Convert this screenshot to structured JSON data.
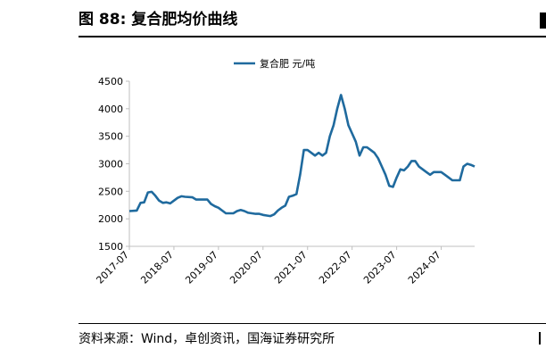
{
  "figure": {
    "label": "图 88:",
    "title": "复合肥均价曲线"
  },
  "source": "资料来源：Wind，卓创资讯，国海证券研究所",
  "chart_data": {
    "type": "line",
    "title": "",
    "xlabel": "",
    "ylabel": "",
    "unit": "元/吨",
    "ylim": [
      1500,
      4500
    ],
    "y_ticks": [
      1500,
      2000,
      2500,
      3000,
      3500,
      4000,
      4500
    ],
    "x_ticks": [
      "2017-07",
      "2018-07",
      "2019-07",
      "2020-07",
      "2021-07",
      "2022-07",
      "2023-07",
      "2024-07"
    ],
    "x_range": [
      "2017-07",
      "2025-04"
    ],
    "grid": false,
    "legend": "top-center",
    "colors": {
      "line": "#1f6a9e",
      "axis": "#bfbfbf"
    },
    "series": [
      {
        "name": "复合肥",
        "points": [
          [
            "2017-07",
            2140
          ],
          [
            "2017-09",
            2150
          ],
          [
            "2017-10",
            2290
          ],
          [
            "2017-11",
            2300
          ],
          [
            "2017-12",
            2480
          ],
          [
            "2018-01",
            2490
          ],
          [
            "2018-02",
            2420
          ],
          [
            "2018-03",
            2330
          ],
          [
            "2018-04",
            2290
          ],
          [
            "2018-05",
            2300
          ],
          [
            "2018-06",
            2280
          ],
          [
            "2018-07",
            2330
          ],
          [
            "2018-08",
            2380
          ],
          [
            "2018-09",
            2410
          ],
          [
            "2018-10",
            2400
          ],
          [
            "2018-12",
            2390
          ],
          [
            "2019-01",
            2350
          ],
          [
            "2019-04",
            2350
          ],
          [
            "2019-05",
            2270
          ],
          [
            "2019-06",
            2230
          ],
          [
            "2019-07",
            2200
          ],
          [
            "2019-08",
            2150
          ],
          [
            "2019-09",
            2100
          ],
          [
            "2019-11",
            2100
          ],
          [
            "2019-12",
            2140
          ],
          [
            "2020-01",
            2160
          ],
          [
            "2020-02",
            2140
          ],
          [
            "2020-03",
            2110
          ],
          [
            "2020-04",
            2100
          ],
          [
            "2020-05",
            2090
          ],
          [
            "2020-06",
            2090
          ],
          [
            "2020-07",
            2070
          ],
          [
            "2020-08",
            2060
          ],
          [
            "2020-09",
            2050
          ],
          [
            "2020-10",
            2080
          ],
          [
            "2020-11",
            2150
          ],
          [
            "2020-12",
            2200
          ],
          [
            "2021-01",
            2240
          ],
          [
            "2021-02",
            2400
          ],
          [
            "2021-03",
            2420
          ],
          [
            "2021-04",
            2450
          ],
          [
            "2021-05",
            2800
          ],
          [
            "2021-06",
            3250
          ],
          [
            "2021-07",
            3250
          ],
          [
            "2021-08",
            3200
          ],
          [
            "2021-09",
            3150
          ],
          [
            "2021-10",
            3200
          ],
          [
            "2021-11",
            3150
          ],
          [
            "2021-12",
            3200
          ],
          [
            "2022-01",
            3500
          ],
          [
            "2022-02",
            3700
          ],
          [
            "2022-03",
            4000
          ],
          [
            "2022-04",
            4250
          ],
          [
            "2022-05",
            4000
          ],
          [
            "2022-06",
            3700
          ],
          [
            "2022-07",
            3550
          ],
          [
            "2022-08",
            3400
          ],
          [
            "2022-09",
            3150
          ],
          [
            "2022-10",
            3300
          ],
          [
            "2022-11",
            3300
          ],
          [
            "2022-12",
            3250
          ],
          [
            "2023-01",
            3200
          ],
          [
            "2023-02",
            3100
          ],
          [
            "2023-03",
            2950
          ],
          [
            "2023-04",
            2800
          ],
          [
            "2023-05",
            2600
          ],
          [
            "2023-06",
            2580
          ],
          [
            "2023-07",
            2750
          ],
          [
            "2023-08",
            2900
          ],
          [
            "2023-09",
            2880
          ],
          [
            "2023-10",
            2950
          ],
          [
            "2023-11",
            3050
          ],
          [
            "2023-12",
            3050
          ],
          [
            "2024-01",
            2950
          ],
          [
            "2024-02",
            2900
          ],
          [
            "2024-03",
            2850
          ],
          [
            "2024-04",
            2800
          ],
          [
            "2024-05",
            2850
          ],
          [
            "2024-06",
            2850
          ],
          [
            "2024-07",
            2850
          ],
          [
            "2024-08",
            2800
          ],
          [
            "2024-09",
            2750
          ],
          [
            "2024-10",
            2700
          ],
          [
            "2024-11",
            2700
          ],
          [
            "2024-12",
            2700
          ],
          [
            "2025-01",
            2950
          ],
          [
            "2025-02",
            3000
          ],
          [
            "2025-03",
            2980
          ],
          [
            "2025-04",
            2950
          ]
        ]
      }
    ]
  }
}
